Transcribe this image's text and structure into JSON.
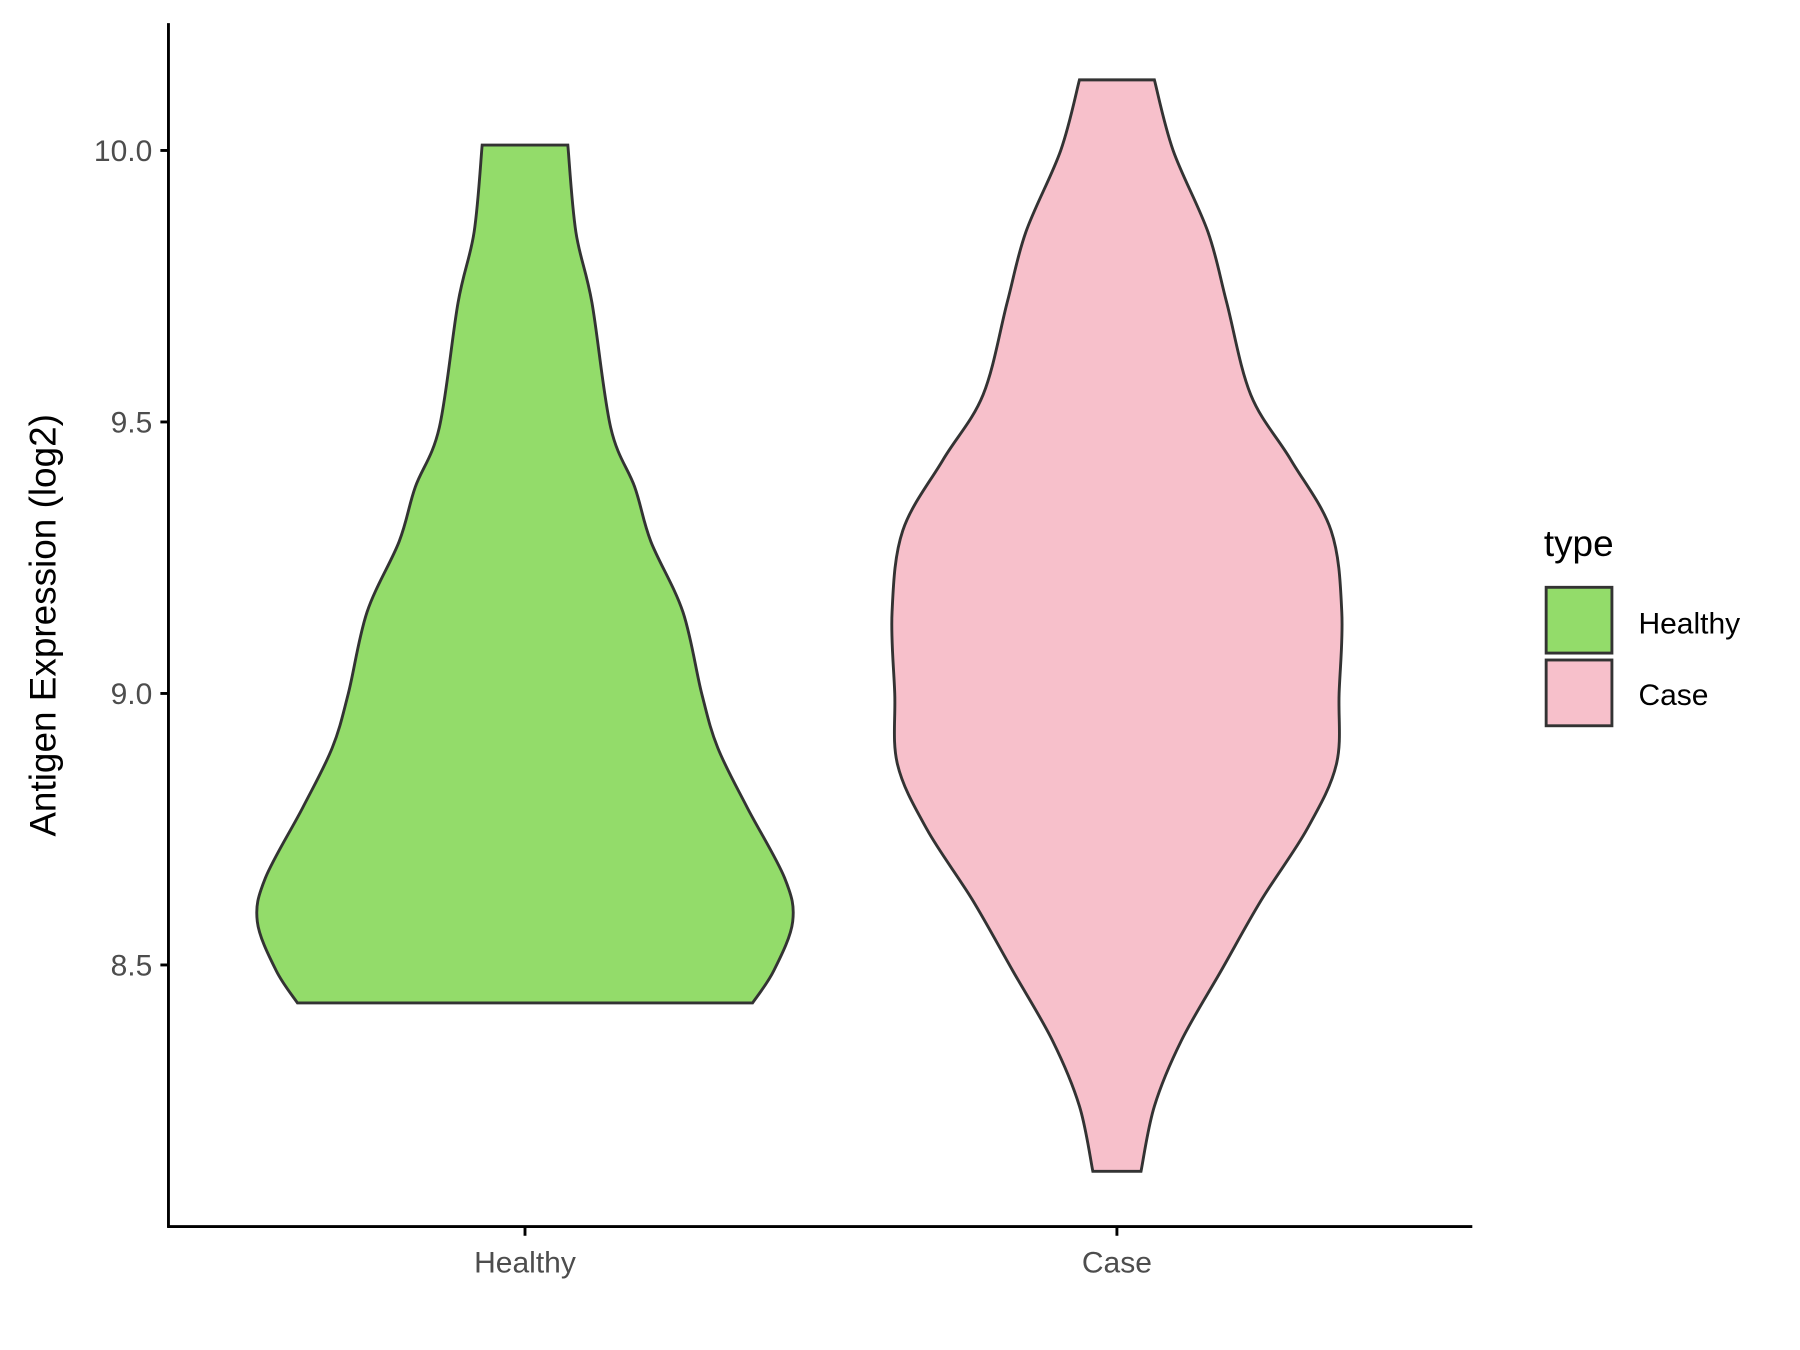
{
  "chart_data": {
    "type": "violin",
    "title": "",
    "xlabel": "",
    "ylabel": "Antigen Expression (log2)",
    "ylim": [
      8.07,
      10.22
    ],
    "yticks": [
      "8.5",
      "9.0",
      "9.5",
      "10.0"
    ],
    "ytick_values": [
      8.5,
      9.0,
      9.5,
      10.0
    ],
    "categories": [
      "Healthy",
      "Case"
    ],
    "legend": {
      "title": "type",
      "position": "right",
      "entries": [
        "Healthy",
        "Case"
      ]
    },
    "colors": {
      "Healthy": "#93DC6A",
      "Case": "#F7C0CB",
      "outline": "#333333"
    },
    "series": [
      {
        "name": "Healthy",
        "y": [
          10.01,
          9.85,
          9.72,
          9.49,
          9.38,
          9.28,
          9.15,
          9.0,
          8.9,
          8.79,
          8.66,
          8.58,
          8.49,
          8.43
        ],
        "density": [
          0.16,
          0.19,
          0.25,
          0.32,
          0.41,
          0.47,
          0.59,
          0.66,
          0.72,
          0.83,
          0.97,
          1.0,
          0.93,
          0.85
        ]
      },
      {
        "name": "Case",
        "y": [
          10.13,
          10.0,
          9.85,
          9.72,
          9.55,
          9.43,
          9.3,
          9.15,
          9.0,
          8.87,
          8.75,
          8.62,
          8.49,
          8.36,
          8.24,
          8.12
        ],
        "density": [
          0.14,
          0.21,
          0.34,
          0.41,
          0.5,
          0.65,
          0.8,
          0.84,
          0.83,
          0.82,
          0.71,
          0.54,
          0.39,
          0.24,
          0.14,
          0.09
        ]
      }
    ]
  }
}
